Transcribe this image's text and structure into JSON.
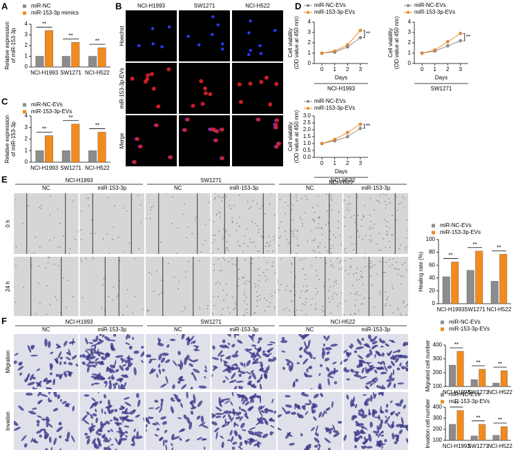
{
  "panel_letters": [
    "A",
    "B",
    "C",
    "D",
    "E",
    "F"
  ],
  "image_panels": {
    "B": {
      "columns": [
        "NCI-H1993",
        "SW1271",
        "NCI-H522"
      ],
      "rows": [
        "Hoechst",
        "miR-153-3p-EVs",
        "Merge"
      ]
    },
    "E": {
      "groups": [
        "NCI-H1993",
        "SW1271",
        "NCI-H522"
      ],
      "columns": [
        "NC",
        "miR-153-3p",
        "NC",
        "miR-153-3p",
        "NC",
        "miR-153-3p"
      ],
      "rows": [
        "0 h",
        "24 h"
      ]
    },
    "F": {
      "groups": [
        "NCI-H1993",
        "SW1271",
        "NCI-H522"
      ],
      "columns": [
        "NC",
        "miR-153-3p",
        "NC",
        "miR-153-3p",
        "NC",
        "miR-153-3p"
      ],
      "rows": [
        "Migration",
        "Invation"
      ]
    }
  },
  "chart_data": [
    {
      "type": "bar",
      "ylabel": [
        "Relative expression",
        "of miR-153-3p"
      ],
      "categories": [
        "NCI-H1993",
        "SW1271",
        "NCI-H522"
      ],
      "series": [
        {
          "name": "miR-NC",
          "color": "#8c8c8c",
          "values": [
            1,
            1,
            1
          ]
        },
        {
          "name": "miR-153-3p mimics",
          "color": "#f28a1e",
          "values": [
            3.4,
            2.3,
            1.8
          ]
        }
      ],
      "ylim": [
        0,
        4
      ],
      "yticks": [
        0,
        1,
        2,
        3,
        4
      ],
      "annotations": [
        "**",
        "**",
        "**"
      ],
      "legend": "top-left"
    },
    {
      "type": "bar",
      "ylabel": [
        "Relative expression",
        "of miR-153-3p"
      ],
      "categories": [
        "NCI-H1993",
        "SW1271",
        "NCI-H522"
      ],
      "series": [
        {
          "name": "miR-NC-EVs",
          "color": "#8c8c8c",
          "values": [
            1,
            1,
            1
          ]
        },
        {
          "name": "miR-153-3p-EVs",
          "color": "#f28a1e",
          "values": [
            2.3,
            3.3,
            2.6
          ]
        }
      ],
      "ylim": [
        0,
        4
      ],
      "yticks": [
        0,
        1,
        2,
        3,
        4
      ],
      "annotations": [
        "**",
        "**",
        "**"
      ],
      "legend": "top-left"
    },
    {
      "type": "line",
      "ylabel": [
        "Cell viability",
        "(OD value at 450 nm)"
      ],
      "xlabel": "Days",
      "cell_line": "NCI-H1993",
      "x": [
        0,
        1,
        2,
        3
      ],
      "series": [
        {
          "name": "miR-NC-EVs",
          "color": "#8c8c8c",
          "values": [
            1,
            1.1,
            1.6,
            2.5
          ]
        },
        {
          "name": "miR-153-3p-EVs",
          "color": "#f28a1e",
          "values": [
            1,
            1.2,
            1.8,
            3.2
          ]
        }
      ],
      "xlim": [
        -0.6,
        3.6
      ],
      "xticks": [
        0,
        1,
        2,
        3
      ],
      "ylim": [
        0,
        4
      ],
      "yticks": [
        0,
        1,
        2,
        3,
        4
      ],
      "annotations": [
        "**"
      ],
      "legend": "top-left"
    },
    {
      "type": "line",
      "ylabel": [
        "Cell viability",
        "(OD value at 450 nm)"
      ],
      "xlabel": "Days",
      "cell_line": "SW1271",
      "x": [
        0,
        1,
        2,
        3
      ],
      "series": [
        {
          "name": "miR-NC-EVs",
          "color": "#8c8c8c",
          "values": [
            1,
            1.2,
            1.7,
            2.2
          ]
        },
        {
          "name": "miR-153-3p-EVs",
          "color": "#f28a1e",
          "values": [
            1,
            1.3,
            2.1,
            2.9
          ]
        }
      ],
      "xlim": [
        -0.6,
        3.6
      ],
      "xticks": [
        0,
        1,
        2,
        3
      ],
      "ylim": [
        0,
        4
      ],
      "yticks": [
        0,
        1,
        2,
        3,
        4
      ],
      "annotations": [
        "**"
      ],
      "legend": "top-left"
    },
    {
      "type": "line",
      "ylabel": [
        "Cell viability",
        "(OD value at 450 nm)"
      ],
      "xlabel": "Days",
      "cell_line": "NCI-H522",
      "x": [
        0,
        1,
        2,
        3
      ],
      "series": [
        {
          "name": "miR-NC-EVs",
          "color": "#8c8c8c",
          "values": [
            1,
            1.2,
            1.5,
            2.1
          ]
        },
        {
          "name": "miR-153-3p-EVs",
          "color": "#f28a1e",
          "values": [
            1,
            1.3,
            1.8,
            2.4
          ]
        }
      ],
      "xlim": [
        -0.6,
        3.6
      ],
      "xticks": [
        0,
        1,
        2,
        3
      ],
      "ylim": [
        0,
        3
      ],
      "yticks": [
        {
          "value": 0,
          "label": "0.0"
        },
        {
          "value": 0.5,
          "label": "0.5"
        },
        {
          "value": 1,
          "label": "1.0"
        },
        {
          "value": 1.5,
          "label": "1.5"
        },
        {
          "value": 2,
          "label": "2.0"
        },
        {
          "value": 2.5,
          "label": "2.5"
        },
        {
          "value": 3,
          "label": "3.0"
        }
      ],
      "annotations": [
        "**"
      ],
      "legend": "top-left"
    },
    {
      "type": "bar",
      "ylabel": [
        "Healing rate (%)"
      ],
      "categories": [
        "NCI-H1993",
        "SW1271",
        "NCI-H522"
      ],
      "series": [
        {
          "name": "miR-NC-EVs",
          "color": "#8c8c8c",
          "values": [
            42,
            52,
            35
          ]
        },
        {
          "name": "miR-153-3p-EVs",
          "color": "#f28a1e",
          "values": [
            65,
            82,
            77
          ]
        }
      ],
      "ylim": [
        0,
        100
      ],
      "yticks": [
        0,
        20,
        40,
        60,
        80,
        100
      ],
      "annotations": [
        "**",
        "**",
        "**"
      ],
      "legend": "top-left"
    },
    {
      "type": "bar",
      "ylabel": [
        "Migrated cell number"
      ],
      "categories": [
        "NCI-H1993",
        "SW1271",
        "NCI-H522"
      ],
      "series": [
        {
          "name": "miR-NC-EVs",
          "color": "#8c8c8c",
          "values": [
            255,
            150,
            125
          ]
        },
        {
          "name": "miR-153-3p-EVs",
          "color": "#f28a1e",
          "values": [
            355,
            225,
            215
          ]
        }
      ],
      "ylim": [
        100,
        400
      ],
      "yticks": [
        100,
        200,
        300,
        400
      ],
      "annotations": [
        "**",
        "**",
        "**"
      ],
      "legend": "top-left"
    },
    {
      "type": "bar",
      "ylabel": [
        "Invation cell number"
      ],
      "categories": [
        "NCI-H1993",
        "SW1271",
        "NCI-H522"
      ],
      "series": [
        {
          "name": "miR-NC-EVs",
          "color": "#8c8c8c",
          "values": [
            245,
            140,
            145
          ]
        },
        {
          "name": "miR-153-3p-EVs",
          "color": "#f28a1e",
          "values": [
            370,
            245,
            225
          ]
        }
      ],
      "ylim": [
        100,
        400
      ],
      "yticks": [
        100,
        200,
        300,
        400
      ],
      "annotations": [
        "**",
        "**",
        "**"
      ],
      "legend": "top-left"
    }
  ]
}
